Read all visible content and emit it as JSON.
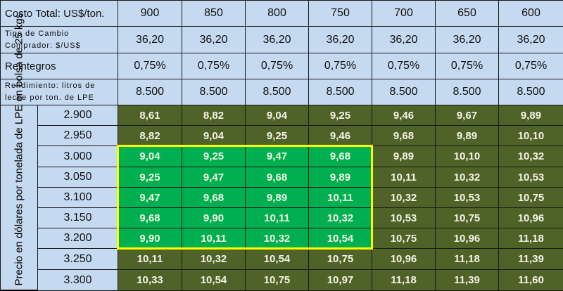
{
  "header_rows": [
    {
      "label": "Costo Total: US$/ton.",
      "values": [
        "900",
        "850",
        "800",
        "750",
        "700",
        "650",
        "600"
      ],
      "small": false
    },
    {
      "label": "Tipo de Cambio Comprador: $/US$",
      "values": [
        "36,20",
        "36,20",
        "36,20",
        "36,20",
        "36,20",
        "36,20",
        "36,20"
      ],
      "small": true
    },
    {
      "label": "Reintegros",
      "values": [
        "0,75%",
        "0,75%",
        "0,75%",
        "0,75%",
        "0,75%",
        "0,75%",
        "0,75%"
      ],
      "small": false
    },
    {
      "label": "Rendimiento: litros de leche por ton. de LPE",
      "values": [
        "8.500",
        "8.500",
        "8.500",
        "8.500",
        "8.500",
        "8.500",
        "8.500"
      ],
      "small": true
    }
  ],
  "vertical_label": "Precio en dólares por tonelada de LPE en bolsa de 25 kgs.",
  "rows": [
    {
      "price": "2.900",
      "values": [
        "8,61",
        "8,82",
        "9,04",
        "9,25",
        "9,46",
        "9,67",
        "9,89"
      ]
    },
    {
      "price": "2.950",
      "values": [
        "8,82",
        "9,04",
        "9,25",
        "9,46",
        "9,68",
        "9,89",
        "10,10"
      ]
    },
    {
      "price": "3.000",
      "values": [
        "9,04",
        "9,25",
        "9,47",
        "9,68",
        "9,89",
        "10,10",
        "10,32"
      ]
    },
    {
      "price": "3.050",
      "values": [
        "9,25",
        "9,47",
        "9,68",
        "9,89",
        "10,11",
        "10,32",
        "10,53"
      ]
    },
    {
      "price": "3.100",
      "values": [
        "9,47",
        "9,68",
        "9,89",
        "10,11",
        "10,32",
        "10,53",
        "10,75"
      ]
    },
    {
      "price": "3.150",
      "values": [
        "9,68",
        "9,90",
        "10,11",
        "10,32",
        "10,53",
        "10,75",
        "10,96"
      ]
    },
    {
      "price": "3.200",
      "values": [
        "9,90",
        "10,11",
        "10,32",
        "10,54",
        "10,75",
        "10,96",
        "11,18"
      ]
    },
    {
      "price": "3.250",
      "values": [
        "10,11",
        "10,32",
        "10,54",
        "10,75",
        "10,96",
        "11,18",
        "11,39"
      ]
    },
    {
      "price": "3.300",
      "values": [
        "10,33",
        "10,54",
        "10,75",
        "10,97",
        "11,18",
        "11,39",
        "11,60"
      ]
    }
  ],
  "highlight": {
    "rows": [
      2,
      6
    ],
    "cols": [
      0,
      3
    ],
    "fill_color": "#00b050",
    "border_color": "#ffff00"
  },
  "colors": {
    "header_bg": "#c5d9f1",
    "cell_bg": "#4f6228",
    "cell_text": "#f4f4e6"
  }
}
